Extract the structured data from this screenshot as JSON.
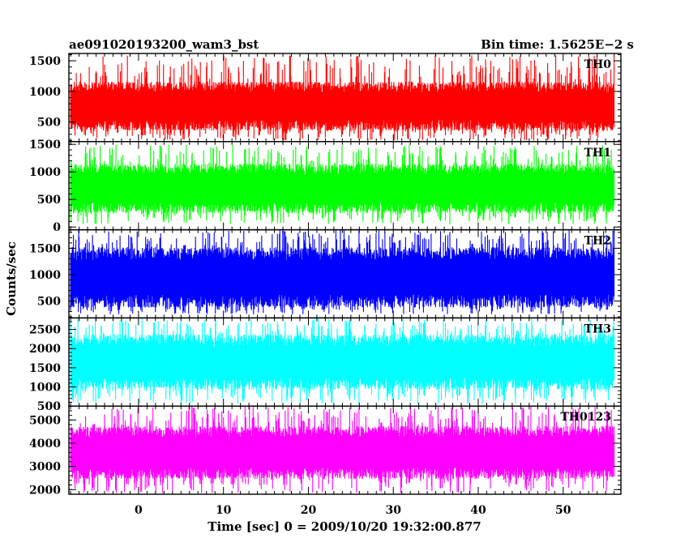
{
  "chart_data": {
    "type": "line",
    "title_left": "ae091020193200_wam3_bst",
    "title_right": "Bin time: 1.5625E−2 s",
    "xlabel": "Time [sec] 0 = 2009/10/20 19:32:00.877",
    "ylabel": "Counts/sec",
    "xlim": [
      -8.2,
      56.8
    ],
    "x_data_range": [
      -8.0,
      56.0
    ],
    "x_ticks": [
      0,
      10,
      20,
      30,
      40,
      50
    ],
    "x_tick_labels": [
      "0",
      "10",
      "20",
      "30",
      "40",
      "50"
    ],
    "series": [
      {
        "name": "TH0",
        "color": "#ff0000",
        "ylim": [
          180,
          1620
        ],
        "y_ticks": [
          500,
          1000,
          1500
        ],
        "y_tick_labels": [
          "500",
          "1000",
          "1500"
        ],
        "mean": 760,
        "typical_range": [
          400,
          1200
        ],
        "extreme_range": [
          200,
          1600
        ]
      },
      {
        "name": "TH1",
        "color": "#00ff00",
        "ylim": [
          -50,
          1550
        ],
        "y_ticks": [
          0,
          500,
          1000,
          1500
        ],
        "y_tick_labels": [
          "0",
          "500",
          "1000",
          "1500"
        ],
        "mean": 700,
        "typical_range": [
          250,
          1150
        ],
        "extreme_range": [
          50,
          1500
        ]
      },
      {
        "name": "TH2",
        "color": "#0000ff",
        "ylim": [
          180,
          1850
        ],
        "y_ticks": [
          500,
          1000,
          1500
        ],
        "y_tick_labels": [
          "500",
          "1000",
          "1500"
        ],
        "mean": 950,
        "typical_range": [
          400,
          1550
        ],
        "extreme_range": [
          250,
          1850
        ]
      },
      {
        "name": "TH3",
        "color": "#00ffff",
        "ylim": [
          500,
          2800
        ],
        "y_ticks": [
          500,
          1000,
          1500,
          2000,
          2500
        ],
        "y_tick_labels": [
          "500",
          "1000",
          "1500",
          "2000",
          "2500"
        ],
        "mean": 1650,
        "typical_range": [
          900,
          2350
        ],
        "extreme_range": [
          550,
          2800
        ]
      },
      {
        "name": "TH0123",
        "color": "#ff00ff",
        "ylim": [
          1800,
          5600
        ],
        "y_ticks": [
          2000,
          3000,
          4000,
          5000
        ],
        "y_tick_labels": [
          "2000",
          "3000",
          "4000",
          "5000"
        ],
        "mean": 3600,
        "typical_range": [
          2500,
          4800
        ],
        "extreme_range": [
          1850,
          5600
        ]
      }
    ]
  }
}
